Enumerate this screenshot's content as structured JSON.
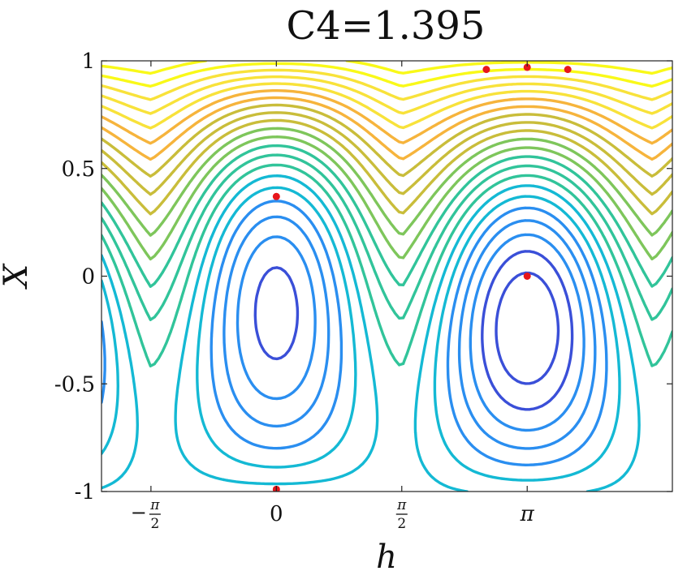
{
  "chart_data": {
    "type": "contour",
    "title": "C4=1.395",
    "xlabel": "h",
    "ylabel": "X",
    "xlim": [
      -2.19,
      4.96
    ],
    "ylim": [
      -1,
      1
    ],
    "xticks": [
      {
        "value": -1.5708,
        "label": "−π/2"
      },
      {
        "value": 0,
        "label": "0"
      },
      {
        "value": 1.5708,
        "label": "π/2"
      },
      {
        "value": 3.1416,
        "label": "π"
      }
    ],
    "yticks": [
      {
        "value": 1,
        "label": "1"
      },
      {
        "value": 0.5,
        "label": "0.5"
      },
      {
        "value": 0,
        "label": "0"
      },
      {
        "value": -0.5,
        "label": "-0.5"
      },
      {
        "value": -1,
        "label": "-1"
      }
    ],
    "colormap": [
      "#2c1b8e",
      "#3a4fd8",
      "#2a8ef0",
      "#14b9d4",
      "#31c49a",
      "#7ec65b",
      "#c9bd3a",
      "#f6b43c",
      "#f8e23a",
      "#f9f918"
    ],
    "contour_count": 22,
    "fixed_points": [
      {
        "x": 0,
        "y": 0.37
      },
      {
        "x": 3.1416,
        "y": 0
      },
      {
        "x": 0,
        "y": -0.99
      },
      {
        "x": 2.63,
        "y": 0.96
      },
      {
        "x": 3.1416,
        "y": 0.97
      },
      {
        "x": 3.65,
        "y": 0.96
      }
    ],
    "marker_color": "#e8161b",
    "grid": false
  }
}
